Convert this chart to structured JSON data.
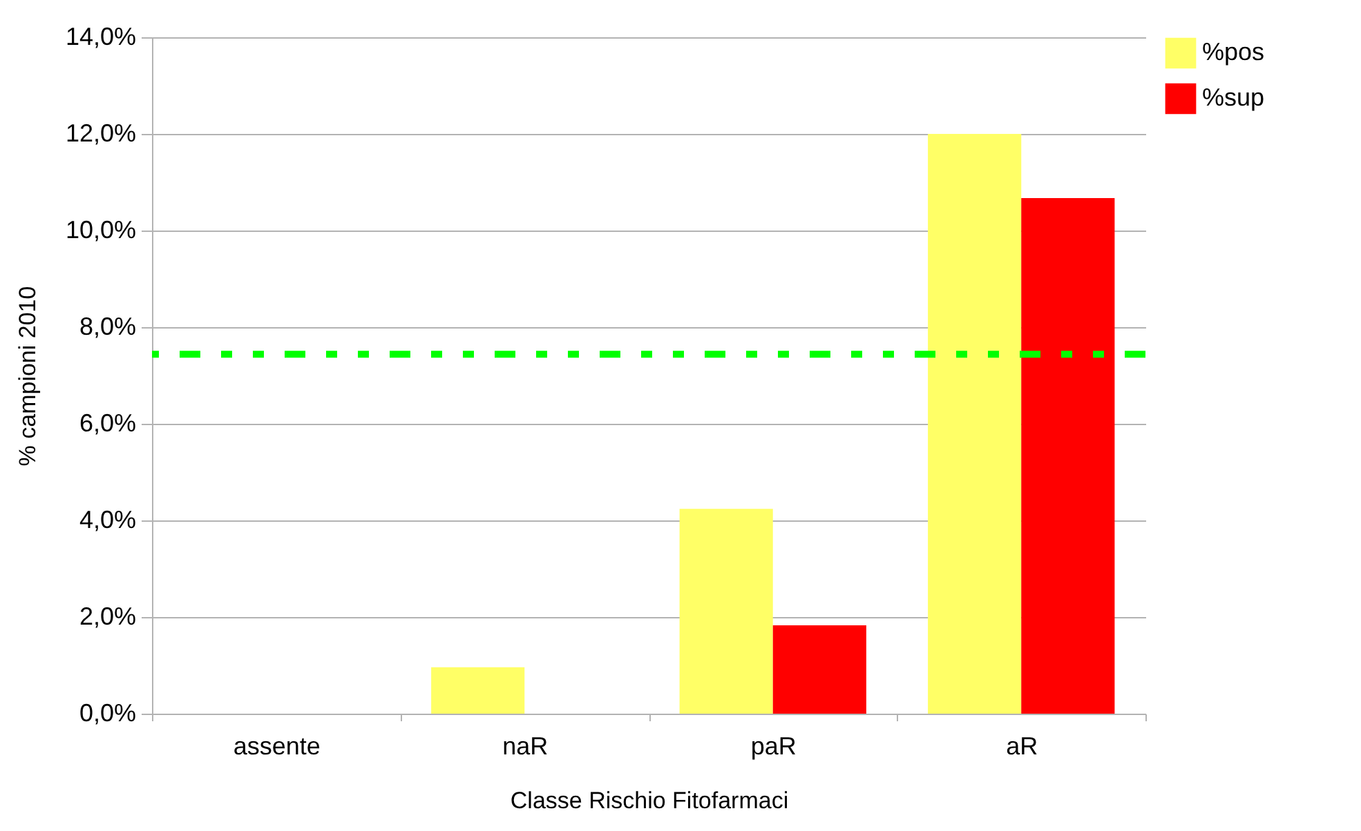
{
  "chart_data": {
    "type": "bar",
    "xlabel": "Classe Rischio Fitofarmaci",
    "ylabel": "% campioni 2010",
    "categories": [
      "assente",
      "naR",
      "paR",
      "aR"
    ],
    "series": [
      {
        "name": "%pos",
        "color": "#ffff66",
        "values": [
          0,
          0.96,
          4.24,
          12.0
        ]
      },
      {
        "name": "%sup",
        "color": "#ff0000",
        "values": [
          0,
          0,
          1.83,
          10.67
        ]
      }
    ],
    "ylim": [
      0,
      14
    ],
    "yticks": [
      {
        "value": 0,
        "label": "0,0%"
      },
      {
        "value": 2,
        "label": "2,0%"
      },
      {
        "value": 4,
        "label": "4,0%"
      },
      {
        "value": 6,
        "label": "6,0%"
      },
      {
        "value": 8,
        "label": "8,0%"
      },
      {
        "value": 10,
        "label": "10,0%"
      },
      {
        "value": 12,
        "label": "12,0%"
      },
      {
        "value": 14,
        "label": "14,0%"
      }
    ],
    "grid": "y",
    "legend": "right",
    "ref_lines": [
      {
        "axis": "y",
        "value": 7.44,
        "color": "#00ff00",
        "line_style": "dotted"
      }
    ]
  }
}
